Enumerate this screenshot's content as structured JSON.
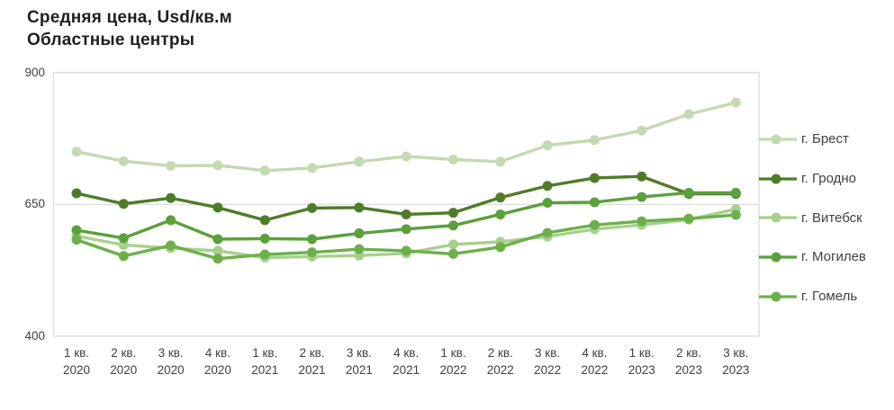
{
  "chart_data": {
    "type": "line",
    "title": "Средняя цена, Usd/кв.м",
    "subtitle": "Областные центры",
    "ylabel": "Usd/кв.м",
    "ylim": [
      400,
      900
    ],
    "yticks": [
      900,
      650,
      400
    ],
    "grid": "single horizontal gridline at 650, plot area boxed in light gray",
    "legend_position": "right",
    "marker": "filled circle on every data point",
    "categories": [
      {
        "q": "1 кв.",
        "y": "2020"
      },
      {
        "q": "2 кв.",
        "y": "2020"
      },
      {
        "q": "3 кв.",
        "y": "2020"
      },
      {
        "q": "4 кв.",
        "y": "2020"
      },
      {
        "q": "1 кв.",
        "y": "2021"
      },
      {
        "q": "2 кв.",
        "y": "2021"
      },
      {
        "q": "3 кв.",
        "y": "2021"
      },
      {
        "q": "4 кв.",
        "y": "2021"
      },
      {
        "q": "1 кв.",
        "y": "2022"
      },
      {
        "q": "2 кв.",
        "y": "2022"
      },
      {
        "q": "3 кв.",
        "y": "2022"
      },
      {
        "q": "4 кв.",
        "y": "2022"
      },
      {
        "q": "1 кв.",
        "y": "2023"
      },
      {
        "q": "2 кв.",
        "y": "2023"
      },
      {
        "q": "3 кв.",
        "y": "2023"
      }
    ],
    "series": [
      {
        "id": "brest",
        "name": "г. Брест",
        "color": "#c5d9b2",
        "values": [
          750,
          732,
          723,
          724,
          714,
          719,
          731,
          741,
          735,
          731,
          762,
          772,
          790,
          821,
          843
        ]
      },
      {
        "id": "grodno",
        "name": "г. Гродно",
        "color": "#4e7c28",
        "values": [
          671,
          651,
          662,
          644,
          620,
          643,
          644,
          631,
          634,
          663,
          685,
          700,
          703,
          670,
          670
        ]
      },
      {
        "id": "vitebsk",
        "name": "г. Витебск",
        "color": "#a8d08d",
        "values": [
          590,
          573,
          567,
          562,
          549,
          551,
          553,
          557,
          574,
          579,
          589,
          603,
          611,
          621,
          641
        ]
      },
      {
        "id": "mogilev",
        "name": "г. Могилев",
        "color": "#5aa03c",
        "values": [
          601,
          586,
          620,
          584,
          585,
          584,
          595,
          603,
          610,
          631,
          653,
          654,
          664,
          672,
          672
        ]
      },
      {
        "id": "gomel",
        "name": "г. Гомель",
        "color": "#6cb04a",
        "values": [
          583,
          552,
          572,
          547,
          555,
          559,
          565,
          562,
          556,
          569,
          596,
          611,
          618,
          623,
          630
        ]
      }
    ]
  }
}
